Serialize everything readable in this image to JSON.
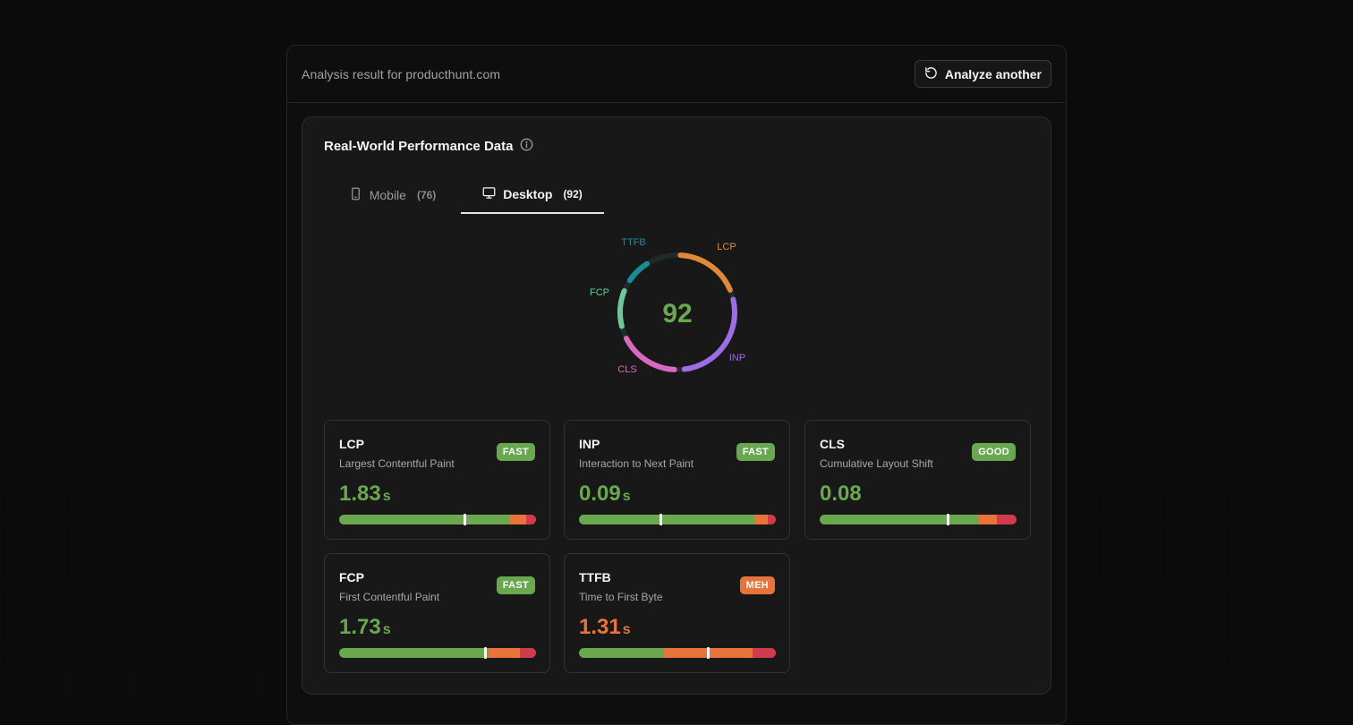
{
  "header": {
    "result_title": "Analysis result for producthunt.com",
    "analyze_button": "Analyze another"
  },
  "card": {
    "title": "Real-World Performance Data"
  },
  "tabs": [
    {
      "label": "Mobile",
      "count": "(76)",
      "icon": "smartphone-icon",
      "active": false
    },
    {
      "label": "Desktop",
      "count": "(92)",
      "icon": "monitor-icon",
      "active": true
    }
  ],
  "gauge": {
    "score": "92",
    "labels": {
      "lcp": "LCP",
      "inp": "INP",
      "cls": "CLS",
      "fcp": "FCP",
      "ttfb": "TTFB"
    },
    "colors": {
      "lcp": "#e08a38",
      "inp": "#9e6de6",
      "cls": "#d968c0",
      "fcp": "#6ec79a",
      "ttfb": "#168e99",
      "track": "#1f2a2a",
      "score": "#6aa84f"
    }
  },
  "colors": {
    "good": "#6aa84f",
    "meh": "#e8743b",
    "poor": "#d13b4b"
  },
  "metrics": [
    {
      "abbr": "LCP",
      "name": "Largest Contentful Paint",
      "badge": "FAST",
      "status": "good",
      "value": "1.83",
      "unit": "s",
      "segments": [
        0.87,
        0.08,
        0.05
      ],
      "marker": 0.635
    },
    {
      "abbr": "INP",
      "name": "Interaction to Next Paint",
      "badge": "FAST",
      "status": "good",
      "value": "0.09",
      "unit": "s",
      "segments": [
        0.89,
        0.07,
        0.04
      ],
      "marker": 0.415
    },
    {
      "abbr": "CLS",
      "name": "Cumulative Layout Shift",
      "badge": "GOOD",
      "status": "good",
      "value": "0.08",
      "unit": "",
      "segments": [
        0.81,
        0.09,
        0.1
      ],
      "marker": 0.65
    },
    {
      "abbr": "FCP",
      "name": "First Contentful Paint",
      "badge": "FAST",
      "status": "good",
      "value": "1.73",
      "unit": "s",
      "segments": [
        0.76,
        0.16,
        0.08
      ],
      "marker": 0.74
    },
    {
      "abbr": "TTFB",
      "name": "Time to First Byte",
      "badge": "MEH",
      "status": "meh",
      "value": "1.31",
      "unit": "s",
      "segments": [
        0.43,
        0.45,
        0.12
      ],
      "marker": 0.655
    }
  ]
}
